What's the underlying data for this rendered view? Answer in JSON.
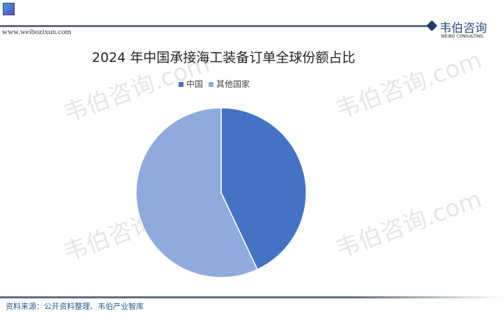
{
  "header": {
    "url": "www.weibozixun.com",
    "logo_cn": "韦伯咨询",
    "logo_en": "WEIBO CONSULTING"
  },
  "watermark": "韦伯咨询.com",
  "footer": {
    "source": "资料来源：公开资料整理、韦伯产业智库"
  },
  "chart_data": {
    "type": "pie",
    "title": "2024 年中国承接海工装备订单全球份额占比",
    "legend_position": "top",
    "categories": [
      "中国",
      "其他国家"
    ],
    "values": [
      43,
      57
    ],
    "colors": [
      "#4472c4",
      "#8faadc"
    ]
  }
}
